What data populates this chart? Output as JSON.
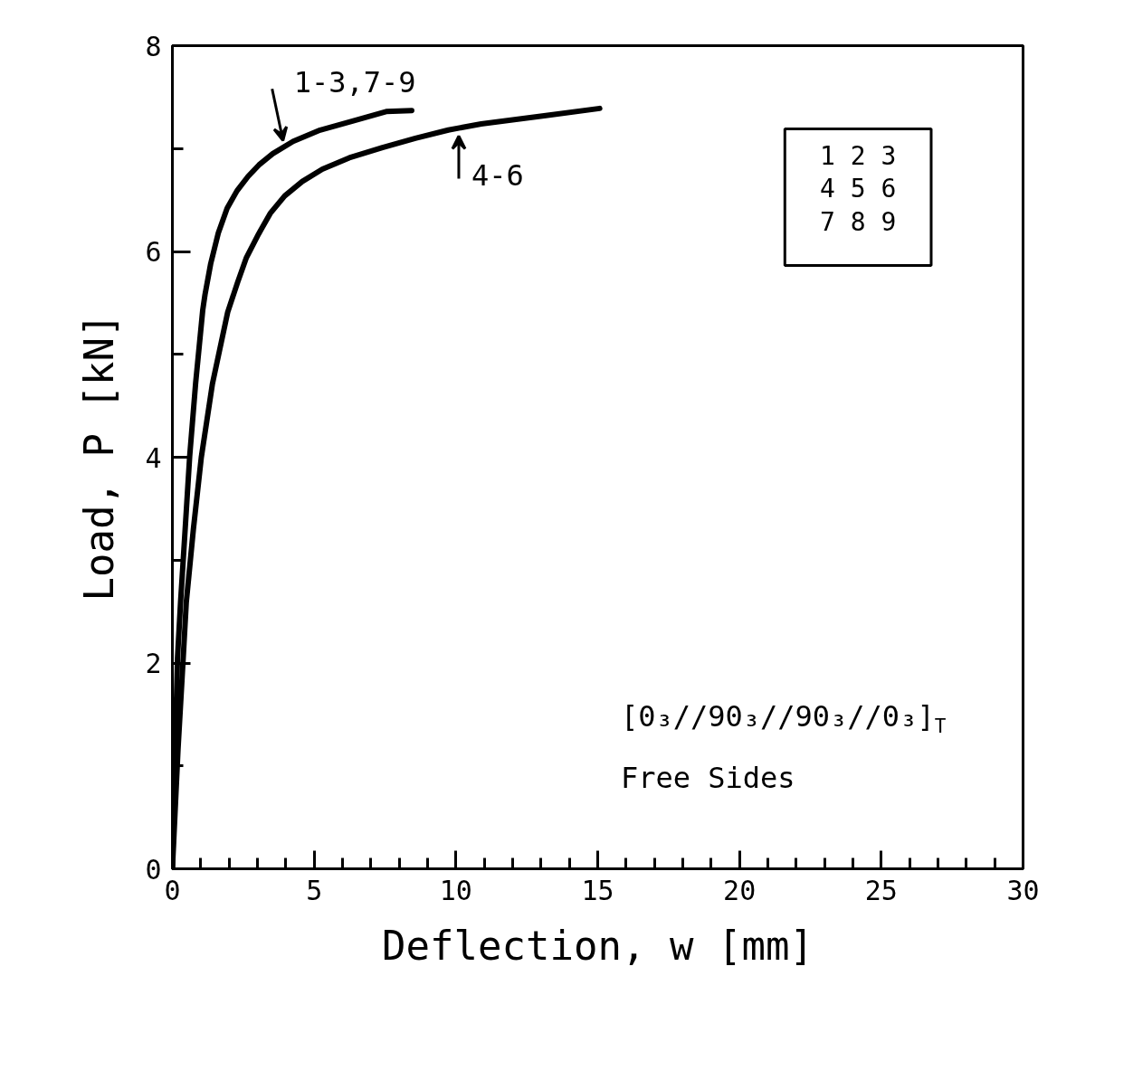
{
  "chart_data": {
    "type": "line",
    "xlabel": "Deflection, w [mm]",
    "ylabel": "Load, P [kN]",
    "xlim": [
      0,
      30
    ],
    "ylim": [
      0,
      8
    ],
    "xticks": [
      0,
      {
        "value": 1,
        "label": null
      },
      {
        "value": 2,
        "label": null
      },
      {
        "value": 3,
        "label": null
      },
      {
        "value": 4,
        "label": null
      },
      5,
      {
        "value": 6,
        "label": null
      },
      {
        "value": 7,
        "label": null
      },
      {
        "value": 8,
        "label": null
      },
      {
        "value": 9,
        "label": null
      },
      10,
      {
        "value": 11,
        "label": null
      },
      {
        "value": 12,
        "label": null
      },
      {
        "value": 13,
        "label": null
      },
      {
        "value": 14,
        "label": null
      },
      15,
      {
        "value": 16,
        "label": null
      },
      {
        "value": 17,
        "label": null
      },
      {
        "value": 18,
        "label": null
      },
      {
        "value": 19,
        "label": null
      },
      20,
      {
        "value": 21,
        "label": null
      },
      {
        "value": 22,
        "label": null
      },
      {
        "value": 23,
        "label": null
      },
      {
        "value": 24,
        "label": null
      },
      25,
      {
        "value": 26,
        "label": null
      },
      {
        "value": 27,
        "label": null
      },
      {
        "value": 28,
        "label": null
      },
      {
        "value": 29,
        "label": null
      },
      30
    ],
    "yticks": [
      0,
      {
        "value": 1,
        "label": null
      },
      2,
      {
        "value": 3,
        "label": null
      },
      4,
      {
        "value": 5,
        "label": null
      },
      6,
      {
        "value": 7,
        "label": null
      },
      8
    ],
    "series": [
      {
        "color": "#000000",
        "x": [
          0,
          0.1,
          0.18,
          0.29,
          0.45,
          0.61,
          0.82,
          1.07,
          1.15,
          1.35,
          1.62,
          1.93,
          2.28,
          2.67,
          3.05,
          3.54,
          4.26,
          5.21,
          6.38,
          7.54,
          8.44
        ],
        "values": [
          0,
          1.18,
          2.05,
          2.6,
          3.3,
          4.01,
          4.72,
          5.43,
          5.58,
          5.88,
          6.18,
          6.42,
          6.59,
          6.73,
          6.84,
          6.95,
          7.07,
          7.18,
          7.27,
          7.36,
          7.37
        ]
      },
      {
        "color": "#000000",
        "x": [
          0,
          0.2,
          0.38,
          0.49,
          0.74,
          1.02,
          1.41,
          1.95,
          2.3,
          2.61,
          3.04,
          3.45,
          3.96,
          4.58,
          5.29,
          6.24,
          7.41,
          8.57,
          9.73,
          10.89,
          13.17,
          15.07
        ],
        "values": [
          0,
          1.17,
          2.04,
          2.59,
          3.3,
          4.0,
          4.71,
          5.41,
          5.7,
          5.94,
          6.17,
          6.37,
          6.54,
          6.68,
          6.8,
          6.91,
          7.01,
          7.1,
          7.18,
          7.24,
          7.32,
          7.39
        ]
      }
    ],
    "annotations": [
      {
        "text": "1-3,7-9",
        "x": 3.9,
        "y": 7.0
      },
      {
        "text": "4-6",
        "x": 10.1,
        "y": 7.2
      },
      "1 2 3",
      "4 5 6",
      "7 8 9",
      "[0₃//90₃//90₃//0₃]$_{T}$",
      "Free Sides"
    ]
  }
}
